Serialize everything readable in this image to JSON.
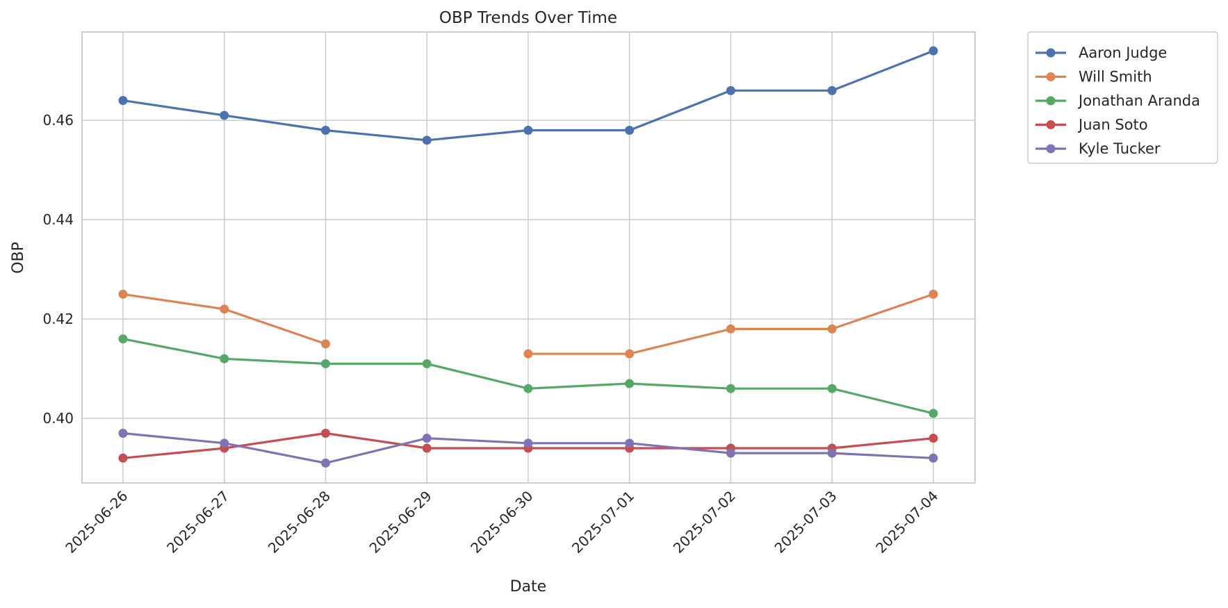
{
  "chart_data": {
    "type": "line",
    "title": "OBP Trends Over Time",
    "xlabel": "Date",
    "ylabel": "OBP",
    "x": [
      "2025-06-26",
      "2025-06-27",
      "2025-06-28",
      "2025-06-29",
      "2025-06-30",
      "2025-07-01",
      "2025-07-02",
      "2025-07-03",
      "2025-07-04"
    ],
    "ylim": [
      0.387,
      0.4778
    ],
    "yticks": [
      0.4,
      0.42,
      0.44,
      0.46
    ],
    "ytick_labels": [
      "0.40",
      "0.42",
      "0.44",
      "0.46"
    ],
    "grid": true,
    "legend_position": "outside-top-right",
    "series": [
      {
        "name": "Aaron Judge",
        "color": "#4c72b0",
        "values": [
          0.464,
          0.461,
          0.458,
          0.456,
          0.458,
          0.458,
          0.466,
          0.466,
          0.474
        ]
      },
      {
        "name": "Will Smith",
        "color": "#dd8452",
        "values": [
          0.425,
          0.422,
          0.415,
          null,
          0.413,
          0.413,
          0.418,
          0.418,
          0.425
        ]
      },
      {
        "name": "Jonathan Aranda",
        "color": "#55a868",
        "values": [
          0.416,
          0.412,
          0.411,
          0.411,
          0.406,
          0.407,
          0.406,
          0.406,
          0.401
        ]
      },
      {
        "name": "Juan Soto",
        "color": "#c44e52",
        "values": [
          0.392,
          0.394,
          0.397,
          0.394,
          0.394,
          0.394,
          0.394,
          0.394,
          0.396
        ]
      },
      {
        "name": "Kyle Tucker",
        "color": "#8172b3",
        "values": [
          0.397,
          0.395,
          0.391,
          0.396,
          0.395,
          0.395,
          0.393,
          0.393,
          0.392
        ]
      }
    ]
  }
}
